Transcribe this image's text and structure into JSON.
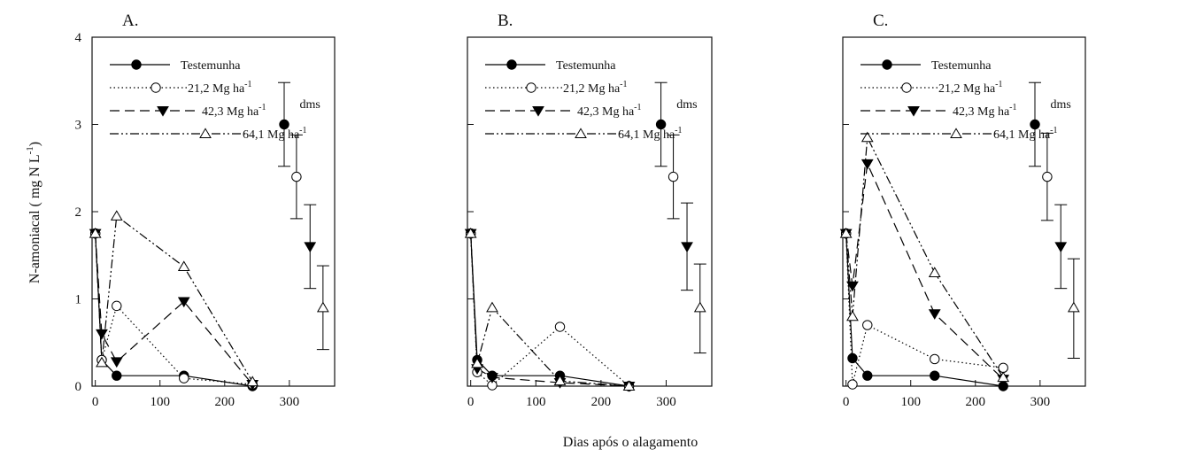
{
  "figure": {
    "ylabel_main": "N-amoniacal ( mg N L",
    "ylabel_sup": "-1",
    "ylabel_close": ")",
    "xlabel": "Dias após o alagamento"
  },
  "chart_data": [
    {
      "type": "line",
      "panel_label": "A.",
      "xlim": [
        -5,
        370
      ],
      "ylim": [
        0,
        4
      ],
      "xticks": [
        0,
        100,
        200,
        300
      ],
      "yticks": [
        0,
        1,
        2,
        3,
        4
      ],
      "ytick_labels": [
        "0",
        "1",
        "2",
        "3",
        "4"
      ],
      "legend_position": "top-left",
      "series": [
        {
          "name": "Testemunha",
          "marker": "filled-circle",
          "dash": "",
          "x": [
            0,
            10,
            33,
            137,
            243
          ],
          "y": [
            1.75,
            0.3,
            0.12,
            0.12,
            0.0
          ]
        },
        {
          "name": "21,2 Mg ha",
          "name_sup": "-1",
          "marker": "open-circle",
          "dash": "1.5,3",
          "x": [
            0,
            10,
            33,
            137,
            243
          ],
          "y": [
            1.75,
            0.3,
            0.92,
            0.09,
            0.02
          ]
        },
        {
          "name": "42,3 Mg ha",
          "name_sup": "-1",
          "marker": "filled-triangle-down",
          "dash": "11,6",
          "x": [
            0,
            10,
            33,
            137,
            243
          ],
          "y": [
            1.75,
            0.6,
            0.28,
            0.97,
            0.02
          ]
        },
        {
          "name": "64,1 Mg ha",
          "name_sup": "-1",
          "marker": "open-triangle-up",
          "dash": "10,3,2,3,2,3",
          "x": [
            0,
            10,
            33,
            137,
            243
          ],
          "y": [
            1.75,
            0.27,
            1.95,
            1.37,
            0.05
          ]
        }
      ],
      "dms": {
        "label": "dms",
        "items": [
          {
            "marker": "filled-circle",
            "x": 292,
            "y": 3.0,
            "low": 2.52,
            "high": 3.48
          },
          {
            "marker": "open-circle",
            "x": 311,
            "y": 2.4,
            "low": 1.92,
            "high": 2.88
          },
          {
            "marker": "filled-triangle-down",
            "x": 332,
            "y": 1.6,
            "low": 1.12,
            "high": 2.08
          },
          {
            "marker": "open-triangle-up",
            "x": 352,
            "y": 0.9,
            "low": 0.42,
            "high": 1.38
          }
        ]
      }
    },
    {
      "type": "line",
      "panel_label": "B.",
      "xlim": [
        -5,
        370
      ],
      "ylim": [
        0,
        4
      ],
      "xticks": [
        0,
        100,
        200,
        300
      ],
      "yticks": [
        0,
        1,
        2,
        3,
        4
      ],
      "ytick_labels": [],
      "legend_position": "top-left",
      "series": [
        {
          "name": "Testemunha",
          "marker": "filled-circle",
          "dash": "",
          "x": [
            0,
            10,
            33,
            137,
            243
          ],
          "y": [
            1.75,
            0.3,
            0.12,
            0.12,
            0.0
          ]
        },
        {
          "name": "21,2 Mg ha",
          "name_sup": "-1",
          "marker": "open-circle",
          "dash": "1.5,3",
          "x": [
            0,
            10,
            33,
            137,
            243
          ],
          "y": [
            1.75,
            0.16,
            0.01,
            0.68,
            0.0
          ]
        },
        {
          "name": "42,3 Mg ha",
          "name_sup": "-1",
          "marker": "filled-triangle-down",
          "dash": "11,6",
          "x": [
            0,
            10,
            33,
            137,
            243
          ],
          "y": [
            1.75,
            0.2,
            0.1,
            0.04,
            0.0
          ]
        },
        {
          "name": "64,1 Mg ha",
          "name_sup": "-1",
          "marker": "open-triangle-up",
          "dash": "10,3,2,3,2,3",
          "x": [
            0,
            10,
            33,
            137,
            243
          ],
          "y": [
            1.75,
            0.26,
            0.9,
            0.06,
            0.0
          ]
        }
      ],
      "dms": {
        "label": "dms",
        "items": [
          {
            "marker": "filled-circle",
            "x": 292,
            "y": 3.0,
            "low": 2.52,
            "high": 3.48
          },
          {
            "marker": "open-circle",
            "x": 311,
            "y": 2.4,
            "low": 1.92,
            "high": 2.88
          },
          {
            "marker": "filled-triangle-down",
            "x": 332,
            "y": 1.6,
            "low": 1.1,
            "high": 2.1
          },
          {
            "marker": "open-triangle-up",
            "x": 352,
            "y": 0.9,
            "low": 0.38,
            "high": 1.4
          }
        ]
      }
    },
    {
      "type": "line",
      "panel_label": "C.",
      "xlim": [
        -5,
        370
      ],
      "ylim": [
        0,
        4
      ],
      "xticks": [
        0,
        100,
        200,
        300
      ],
      "yticks": [
        0,
        1,
        2,
        3,
        4
      ],
      "ytick_labels": [],
      "legend_position": "top-left",
      "series": [
        {
          "name": "Testemunha",
          "marker": "filled-circle",
          "dash": "",
          "x": [
            0,
            10,
            33,
            137,
            243
          ],
          "y": [
            1.75,
            0.32,
            0.12,
            0.12,
            0.0
          ]
        },
        {
          "name": "21,2 Mg ha",
          "name_sup": "-1",
          "marker": "open-circle",
          "dash": "1.5,3",
          "x": [
            0,
            10,
            33,
            137,
            243
          ],
          "y": [
            1.75,
            0.02,
            0.7,
            0.31,
            0.21
          ]
        },
        {
          "name": "42,3 Mg ha",
          "name_sup": "-1",
          "marker": "filled-triangle-down",
          "dash": "11,6",
          "x": [
            0,
            10,
            33,
            137,
            243
          ],
          "y": [
            1.75,
            1.15,
            2.55,
            0.83,
            0.08
          ]
        },
        {
          "name": "64,1 Mg ha",
          "name_sup": "-1",
          "marker": "open-triangle-up",
          "dash": "10,3,2,3,2,3",
          "x": [
            0,
            10,
            33,
            137,
            243
          ],
          "y": [
            1.75,
            0.8,
            2.85,
            1.3,
            0.1
          ]
        }
      ],
      "dms": {
        "label": "dms",
        "items": [
          {
            "marker": "filled-circle",
            "x": 292,
            "y": 3.0,
            "low": 2.52,
            "high": 3.48
          },
          {
            "marker": "open-circle",
            "x": 311,
            "y": 2.4,
            "low": 1.9,
            "high": 2.9
          },
          {
            "marker": "filled-triangle-down",
            "x": 332,
            "y": 1.6,
            "low": 1.12,
            "high": 2.08
          },
          {
            "marker": "open-triangle-up",
            "x": 352,
            "y": 0.9,
            "low": 0.32,
            "high": 1.46
          }
        ]
      }
    }
  ]
}
